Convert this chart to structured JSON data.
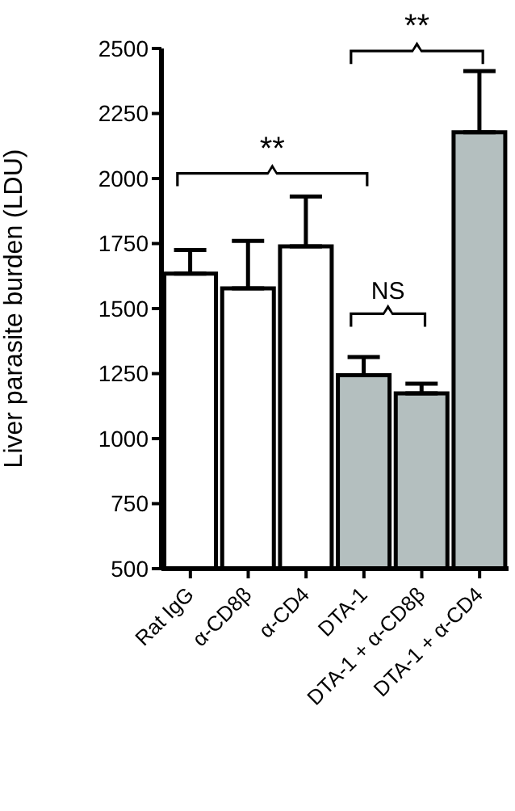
{
  "chart_data": {
    "type": "bar",
    "ylabel": "Liver parasite burden (LDU)",
    "categories": [
      "Rat IgG",
      "α-CD8β",
      "α-CD4",
      "DTA-1",
      "DTA-1 + α-CD8β",
      "DTA-1 + α-CD4"
    ],
    "values": [
      1634,
      1578,
      1739,
      1244,
      1174,
      2178
    ],
    "errors": [
      91,
      182,
      192,
      70,
      37,
      235
    ],
    "colors": [
      "#ffffff",
      "#ffffff",
      "#ffffff",
      "#b4bfbf",
      "#b4bfbf",
      "#b4bfbf"
    ],
    "ylim": [
      500,
      2500
    ],
    "yticks": [
      500,
      750,
      1000,
      1250,
      1500,
      1750,
      2000,
      2250,
      2500
    ],
    "annotations": [
      "**",
      "NS",
      "**"
    ],
    "grid": false,
    "legend": false
  }
}
